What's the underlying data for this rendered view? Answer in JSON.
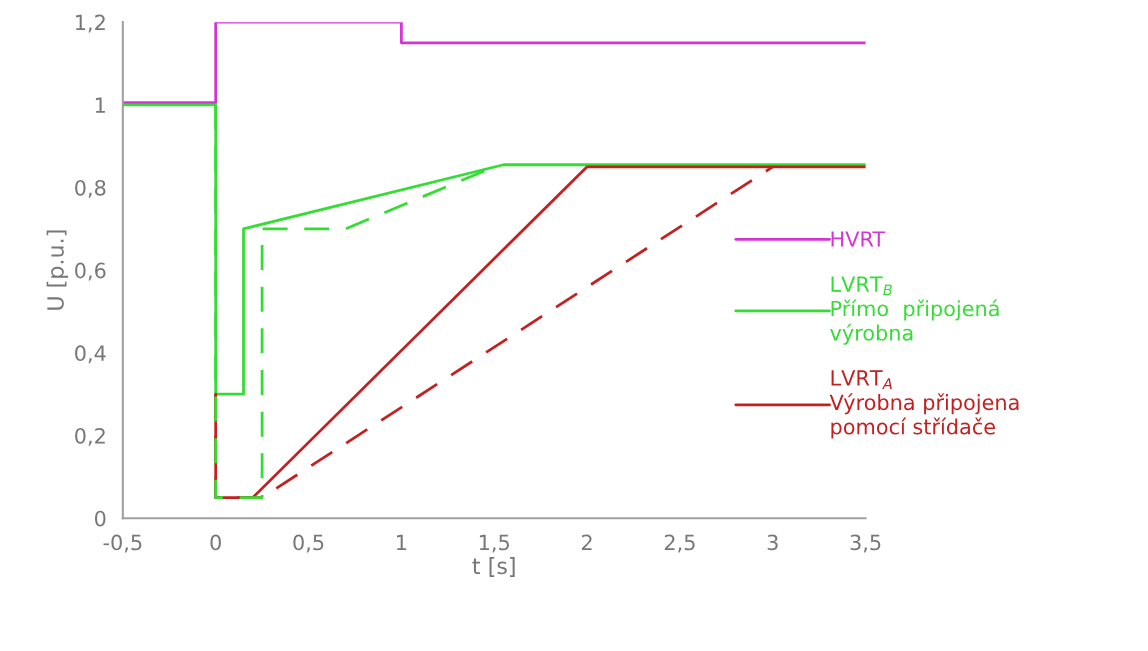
{
  "chart_data": {
    "type": "line",
    "xlabel": "t [s]",
    "ylabel": "U [p.u.]",
    "xlim": [
      -0.5,
      3.5
    ],
    "ylim": [
      0,
      1.2
    ],
    "xticks": [
      {
        "value": -0.5,
        "label": "-0,5"
      },
      0,
      {
        "value": 0.5,
        "label": "0,5"
      },
      1,
      {
        "value": 1.5,
        "label": "1,5"
      },
      2,
      {
        "value": 2.5,
        "label": "2,5"
      },
      3,
      {
        "value": 3.5,
        "label": "3,5"
      }
    ],
    "yticks": [
      0,
      {
        "value": 0.2,
        "label": "0,2"
      },
      {
        "value": 0.4,
        "label": "0,4"
      },
      {
        "value": 0.6,
        "label": "0,6"
      },
      {
        "value": 0.8,
        "label": "0,8"
      },
      1,
      {
        "value": 1.2,
        "label": "1,2"
      }
    ],
    "grid": false,
    "legend": "right",
    "marker": "none",
    "series": [
      {
        "name": "HVRT",
        "color": "#d633d6",
        "line_style": "solid",
        "x": [
          -0.5,
          0,
          0,
          1,
          1,
          3.5
        ],
        "values": [
          1.005,
          1.005,
          1.2,
          1.2,
          1.15,
          1.15
        ]
      },
      {
        "name": "LVRT$_{B}$\nPřímo  připojená\nvýrobna",
        "color": "#33dd33",
        "line_style": "solid",
        "x": [
          -0.5,
          0,
          0,
          0.15,
          0.15,
          1.55,
          3.5
        ],
        "values": [
          1,
          1,
          0.3,
          0.3,
          0.7,
          0.855,
          0.855
        ]
      },
      {
        "color": "#33dd33",
        "line_style": "dashed",
        "x": [
          0,
          0,
          0.25,
          0.25,
          0.7,
          1.5
        ],
        "values": [
          1,
          0.05,
          0.05,
          0.7,
          0.7,
          0.85
        ]
      },
      {
        "name": "LVRT$_{A}$\nVýrobna připojena\npomocí střídače",
        "color": "#c42020",
        "line_style": "solid",
        "x": [
          0,
          0,
          0.2,
          2,
          3.5
        ],
        "values": [
          0.3,
          0.05,
          0.05,
          0.85,
          0.85
        ]
      },
      {
        "color": "#c42020",
        "line_style": "dashed",
        "x": [
          0,
          0,
          0.25,
          3
        ],
        "values": [
          0.3,
          0.05,
          0.05,
          0.85
        ]
      }
    ]
  }
}
